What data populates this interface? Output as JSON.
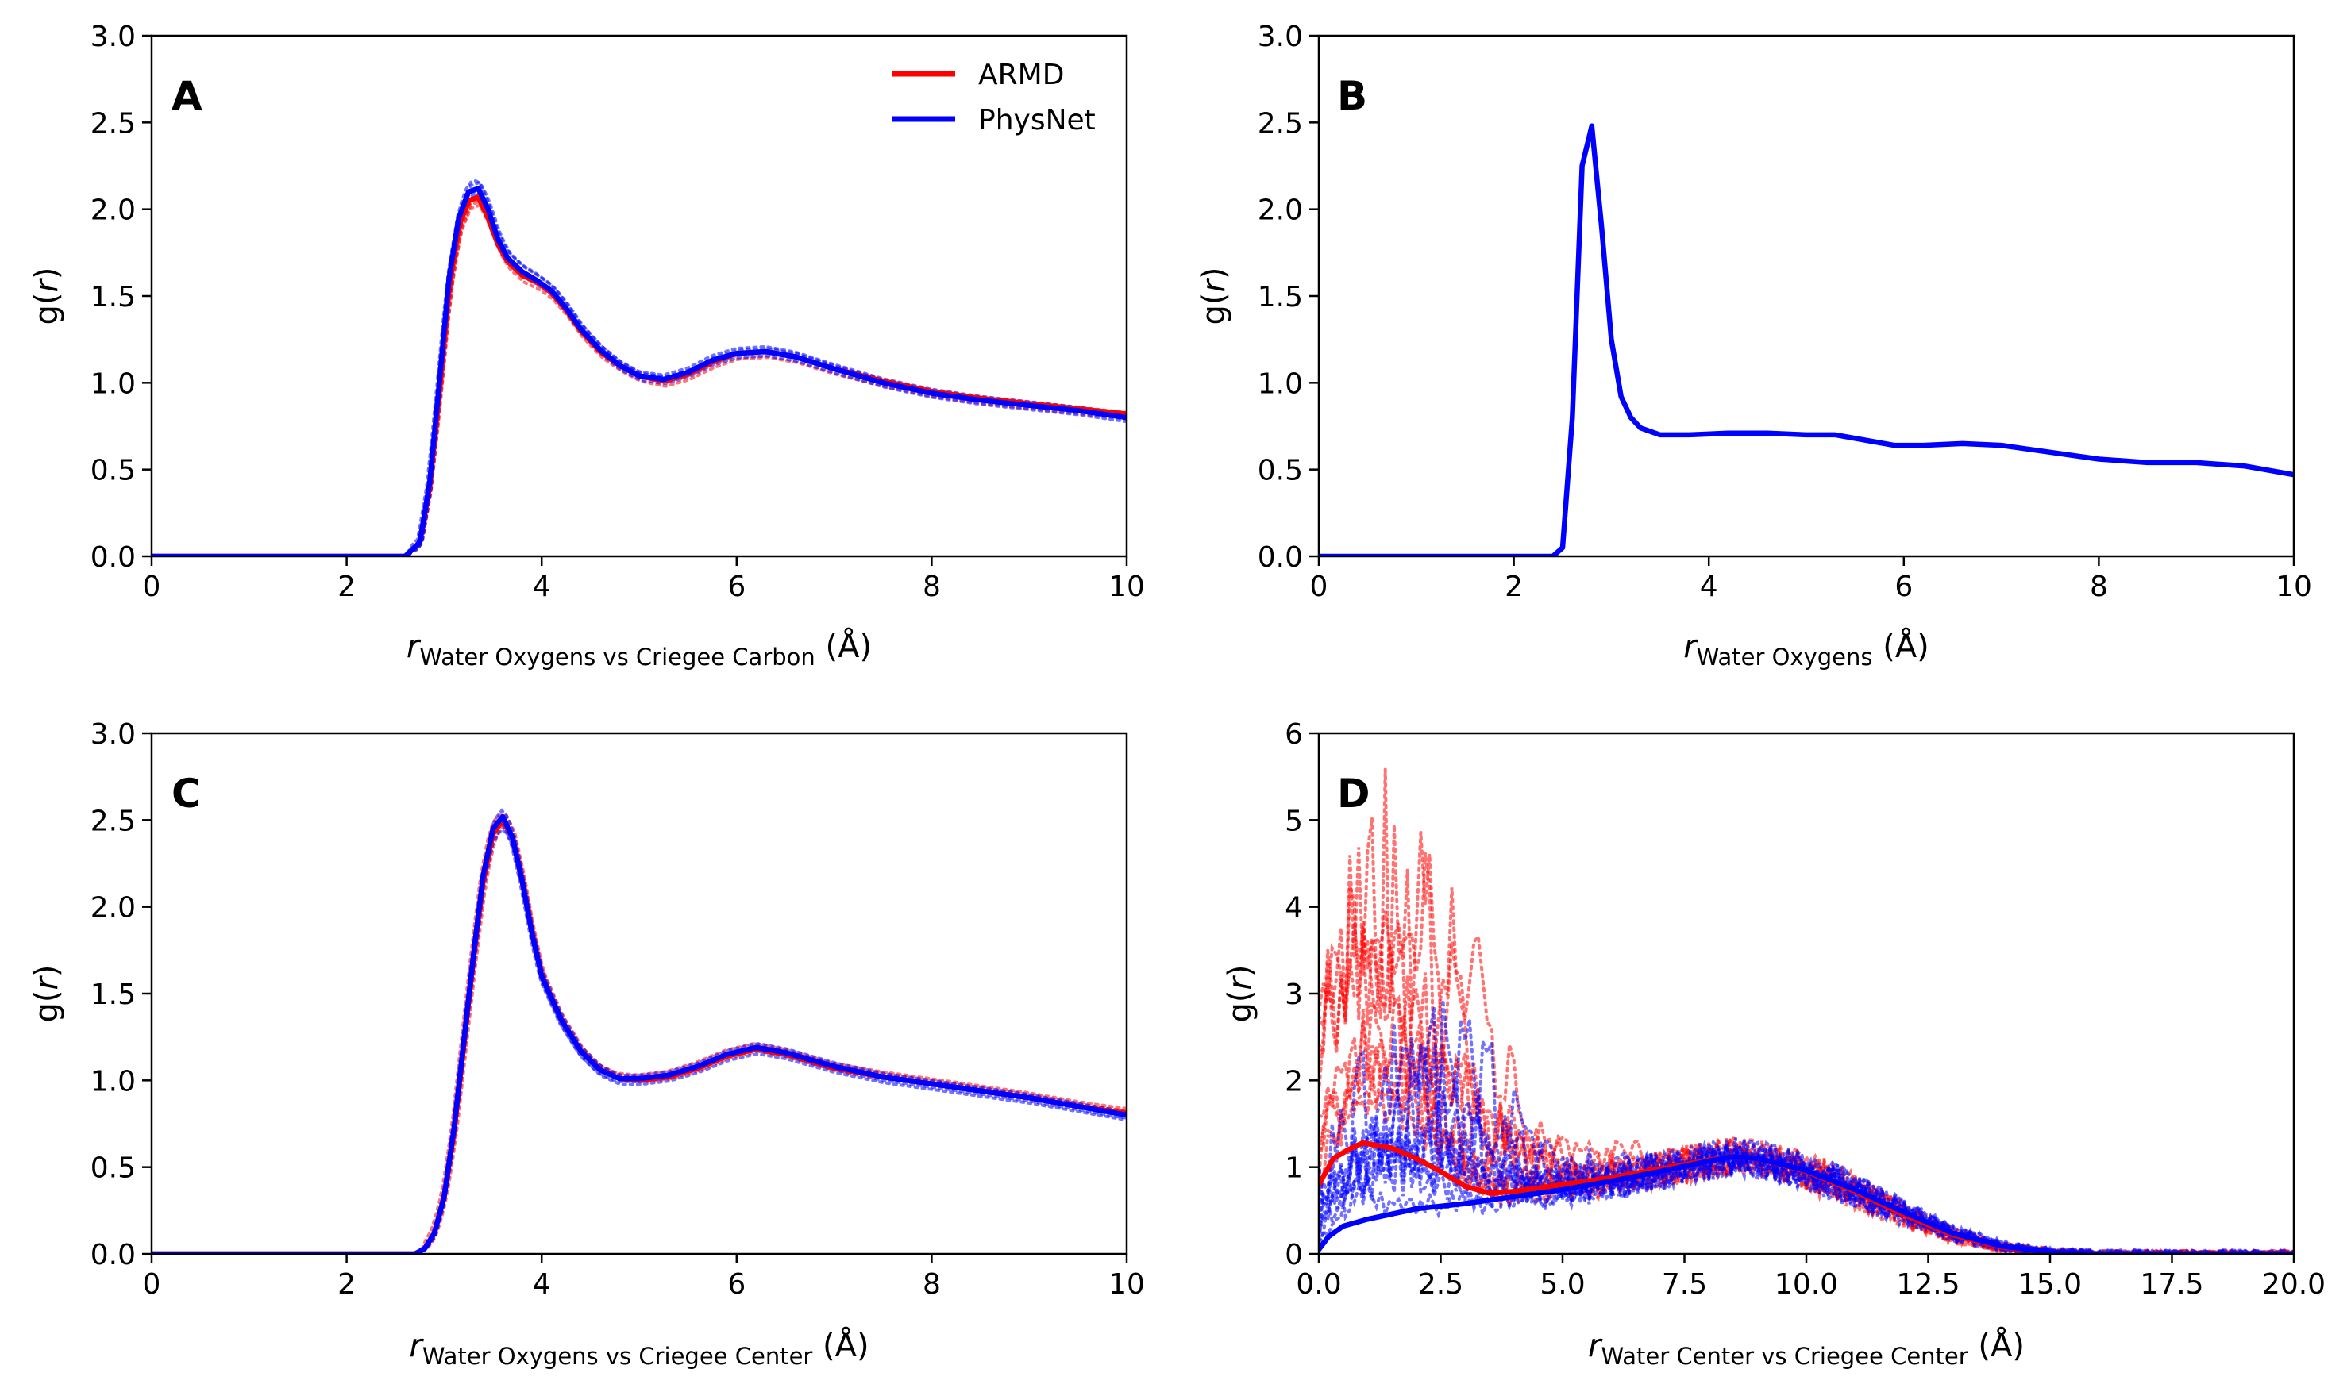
{
  "chart_data": [
    {
      "id": "A",
      "type": "line",
      "panel_label": "A",
      "xlabel_main": "r",
      "xlabel_sub": "Water Oxygens vs Criegee Carbon",
      "xlabel_unit": " (Å)",
      "ylabel_pre": "g(",
      "ylabel_var": "r",
      "ylabel_post": ")",
      "xlim": [
        0,
        10
      ],
      "ylim": [
        0,
        3
      ],
      "xticks": [
        0,
        2,
        4,
        6,
        8,
        10
      ],
      "xtick_labels": [
        "0",
        "2",
        "4",
        "6",
        "8",
        "10"
      ],
      "yticks": [
        0,
        0.5,
        1,
        1.5,
        2,
        2.5,
        3
      ],
      "ytick_labels": [
        "0.0",
        "0.5",
        "1.0",
        "1.5",
        "2.0",
        "2.5",
        "3.0"
      ],
      "legend": {
        "placement": "top-right",
        "entries": [
          {
            "label": "ARMD",
            "color": "#ff0000"
          },
          {
            "label": "PhysNet",
            "color": "#0000ff"
          }
        ]
      },
      "series": [
        {
          "name": "ARMD",
          "color": "#ff0000",
          "style": "solid",
          "x": [
            0,
            2.6,
            2.75,
            2.85,
            2.95,
            3.05,
            3.15,
            3.25,
            3.35,
            3.45,
            3.55,
            3.65,
            3.8,
            3.95,
            4.1,
            4.25,
            4.4,
            4.6,
            4.8,
            5.0,
            5.25,
            5.5,
            5.75,
            6.0,
            6.3,
            6.6,
            7.0,
            7.5,
            8.0,
            8.5,
            9.0,
            9.5,
            10.0
          ],
          "y": [
            0,
            0,
            0.08,
            0.4,
            0.95,
            1.55,
            1.9,
            2.05,
            2.07,
            1.95,
            1.8,
            1.7,
            1.62,
            1.58,
            1.52,
            1.42,
            1.3,
            1.18,
            1.1,
            1.04,
            1.01,
            1.05,
            1.12,
            1.17,
            1.18,
            1.15,
            1.08,
            1.01,
            0.95,
            0.91,
            0.88,
            0.85,
            0.82
          ]
        },
        {
          "name": "PhysNet",
          "color": "#0000ff",
          "style": "solid",
          "x": [
            0,
            2.6,
            2.75,
            2.85,
            2.95,
            3.05,
            3.15,
            3.25,
            3.35,
            3.45,
            3.55,
            3.65,
            3.8,
            3.95,
            4.1,
            4.25,
            4.4,
            4.6,
            4.8,
            5.0,
            5.25,
            5.5,
            5.75,
            6.0,
            6.3,
            6.6,
            7.0,
            7.5,
            8.0,
            8.5,
            9.0,
            9.5,
            10.0
          ],
          "y": [
            0,
            0,
            0.08,
            0.42,
            1.0,
            1.6,
            1.95,
            2.1,
            2.12,
            2.0,
            1.83,
            1.72,
            1.64,
            1.59,
            1.53,
            1.43,
            1.31,
            1.19,
            1.1,
            1.04,
            1.02,
            1.06,
            1.13,
            1.17,
            1.18,
            1.15,
            1.08,
            1.0,
            0.94,
            0.9,
            0.87,
            0.84,
            0.8
          ]
        }
      ]
    },
    {
      "id": "B",
      "type": "line",
      "panel_label": "B",
      "xlabel_main": "r",
      "xlabel_sub": "Water Oxygens",
      "xlabel_unit": " (Å)",
      "ylabel_pre": "g(",
      "ylabel_var": "r",
      "ylabel_post": ")",
      "xlim": [
        0,
        10
      ],
      "ylim": [
        0,
        3
      ],
      "xticks": [
        0,
        2,
        4,
        6,
        8,
        10
      ],
      "xtick_labels": [
        "0",
        "2",
        "4",
        "6",
        "8",
        "10"
      ],
      "yticks": [
        0,
        0.5,
        1,
        1.5,
        2,
        2.5,
        3
      ],
      "ytick_labels": [
        "0.0",
        "0.5",
        "1.0",
        "1.5",
        "2.0",
        "2.5",
        "3.0"
      ],
      "series": [
        {
          "name": "PhysNet",
          "color": "#0000ff",
          "style": "solid",
          "x": [
            0,
            2.4,
            2.5,
            2.6,
            2.7,
            2.8,
            2.9,
            3.0,
            3.1,
            3.2,
            3.3,
            3.5,
            3.8,
            4.2,
            4.6,
            5.0,
            5.3,
            5.6,
            5.9,
            6.2,
            6.6,
            7.0,
            7.5,
            8.0,
            8.5,
            9.0,
            9.5,
            10.0
          ],
          "y": [
            0,
            0,
            0.05,
            0.8,
            2.25,
            2.48,
            1.9,
            1.25,
            0.92,
            0.8,
            0.74,
            0.7,
            0.7,
            0.71,
            0.71,
            0.7,
            0.7,
            0.67,
            0.64,
            0.64,
            0.65,
            0.64,
            0.6,
            0.56,
            0.54,
            0.54,
            0.52,
            0.47
          ]
        }
      ]
    },
    {
      "id": "C",
      "type": "line",
      "panel_label": "C",
      "xlabel_main": "r",
      "xlabel_sub": "Water Oxygens vs Criegee Center",
      "xlabel_unit": " (Å)",
      "ylabel_pre": "g(",
      "ylabel_var": "r",
      "ylabel_post": ")",
      "xlim": [
        0,
        10
      ],
      "ylim": [
        0,
        3
      ],
      "xticks": [
        0,
        2,
        4,
        6,
        8,
        10
      ],
      "xtick_labels": [
        "0",
        "2",
        "4",
        "6",
        "8",
        "10"
      ],
      "yticks": [
        0,
        0.5,
        1,
        1.5,
        2,
        2.5,
        3
      ],
      "ytick_labels": [
        "0.0",
        "0.5",
        "1.0",
        "1.5",
        "2.0",
        "2.5",
        "3.0"
      ],
      "series": [
        {
          "name": "ARMD",
          "color": "#ff0000",
          "style": "solid",
          "x": [
            0,
            2.7,
            2.8,
            2.9,
            3.0,
            3.1,
            3.2,
            3.3,
            3.4,
            3.5,
            3.6,
            3.7,
            3.8,
            3.9,
            4.0,
            4.2,
            4.4,
            4.6,
            4.8,
            5.0,
            5.3,
            5.6,
            5.9,
            6.2,
            6.5,
            7.0,
            7.5,
            8.0,
            8.5,
            9.0,
            9.5,
            10.0
          ],
          "y": [
            0,
            0,
            0.03,
            0.12,
            0.33,
            0.7,
            1.2,
            1.7,
            2.15,
            2.42,
            2.5,
            2.4,
            2.15,
            1.85,
            1.6,
            1.35,
            1.17,
            1.06,
            1.01,
            1.0,
            1.02,
            1.07,
            1.14,
            1.18,
            1.15,
            1.07,
            1.02,
            0.98,
            0.94,
            0.9,
            0.85,
            0.81
          ]
        },
        {
          "name": "PhysNet",
          "color": "#0000ff",
          "style": "solid",
          "x": [
            0,
            2.7,
            2.8,
            2.9,
            3.0,
            3.1,
            3.2,
            3.3,
            3.4,
            3.5,
            3.6,
            3.7,
            3.8,
            3.9,
            4.0,
            4.2,
            4.4,
            4.6,
            4.8,
            5.0,
            5.3,
            5.6,
            5.9,
            6.2,
            6.5,
            7.0,
            7.5,
            8.0,
            8.5,
            9.0,
            9.5,
            10.0
          ],
          "y": [
            0,
            0,
            0.03,
            0.12,
            0.33,
            0.72,
            1.22,
            1.72,
            2.18,
            2.45,
            2.52,
            2.4,
            2.15,
            1.85,
            1.6,
            1.35,
            1.17,
            1.06,
            1.01,
            1.01,
            1.03,
            1.08,
            1.15,
            1.19,
            1.16,
            1.08,
            1.02,
            0.98,
            0.94,
            0.9,
            0.85,
            0.8
          ]
        }
      ]
    },
    {
      "id": "D",
      "type": "line",
      "panel_label": "D",
      "xlabel_main": "r",
      "xlabel_sub": "Water Center vs Criegee Center",
      "xlabel_unit": " (Å)",
      "ylabel_pre": "g(",
      "ylabel_var": "r",
      "ylabel_post": ")",
      "xlim": [
        0,
        20
      ],
      "ylim": [
        0,
        6
      ],
      "xticks": [
        0,
        2.5,
        5,
        7.5,
        10,
        12.5,
        15,
        17.5,
        20
      ],
      "xtick_labels": [
        "0.0",
        "2.5",
        "5.0",
        "7.5",
        "10.0",
        "12.5",
        "15.0",
        "17.5",
        "20.0"
      ],
      "yticks": [
        0,
        1,
        2,
        3,
        4,
        5,
        6
      ],
      "ytick_labels": [
        "0",
        "1",
        "2",
        "3",
        "4",
        "5",
        "6"
      ],
      "series": [
        {
          "name": "ARMD",
          "color": "#ff0000",
          "style": "solid",
          "x": [
            0,
            0.3,
            0.6,
            0.9,
            1.2,
            1.5,
            2.0,
            2.5,
            3.0,
            3.5,
            4.0,
            5.0,
            6.0,
            7.0,
            8.0,
            8.5,
            9.0,
            10.0,
            11.0,
            12.0,
            13.0,
            14.0,
            15.0,
            16.0,
            17.0,
            18.0,
            19.0,
            20.0
          ],
          "y": [
            0.8,
            1.1,
            1.2,
            1.28,
            1.25,
            1.22,
            1.1,
            0.95,
            0.78,
            0.7,
            0.72,
            0.8,
            0.88,
            0.98,
            1.08,
            1.12,
            1.1,
            0.95,
            0.72,
            0.45,
            0.22,
            0.08,
            0.02,
            0,
            0,
            0,
            0,
            0
          ]
        },
        {
          "name": "PhysNet",
          "color": "#0000ff",
          "style": "solid",
          "x": [
            0,
            0.2,
            0.5,
            1.0,
            2.0,
            3.0,
            4.0,
            5.0,
            6.0,
            7.0,
            8.0,
            8.5,
            9.0,
            10.0,
            11.0,
            12.0,
            13.0,
            14.0,
            15.0,
            16.0,
            17.0,
            18.0,
            19.0,
            20.0
          ],
          "y": [
            0.05,
            0.2,
            0.32,
            0.4,
            0.52,
            0.58,
            0.66,
            0.74,
            0.84,
            0.95,
            1.07,
            1.12,
            1.1,
            0.96,
            0.74,
            0.48,
            0.24,
            0.09,
            0.02,
            0,
            0,
            0,
            0,
            0
          ]
        }
      ]
    }
  ]
}
